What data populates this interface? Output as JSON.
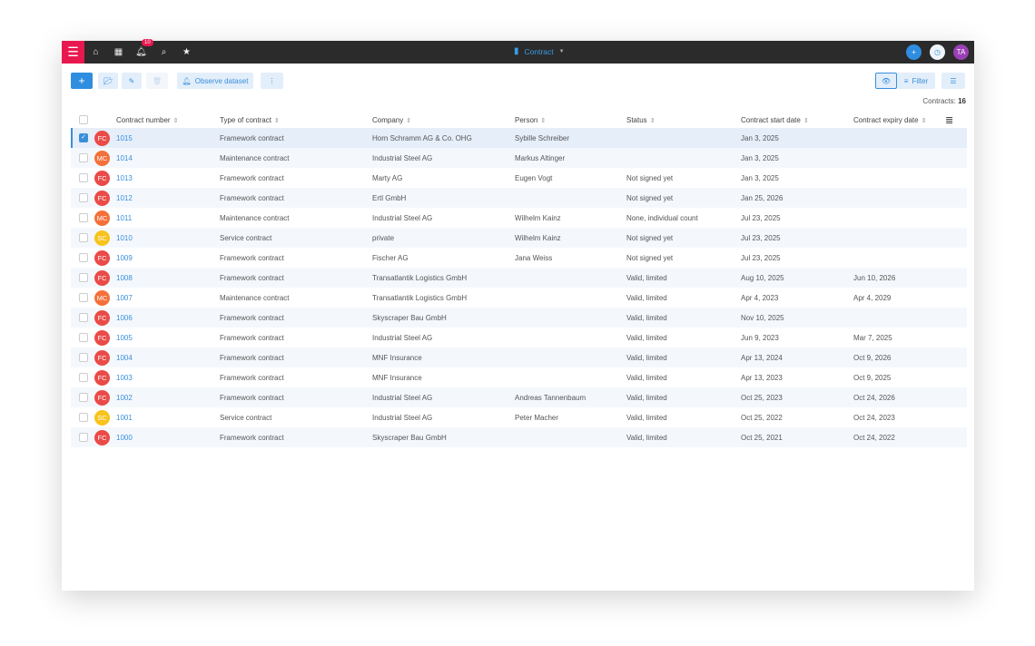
{
  "topbar": {
    "title": "Contract",
    "notifications": "10",
    "user_initials": "TA"
  },
  "toolbar": {
    "observe": "Observe dataset",
    "filter": "Filter"
  },
  "count": {
    "label": "Contracts:",
    "value": "16"
  },
  "columns": [
    "Contract number",
    "Type of contract",
    "Company",
    "Person",
    "Status",
    "Contract start date",
    "Contract expiry date"
  ],
  "colors": {
    "FC": "#ea4b48",
    "MC": "#f4703a",
    "SC": "#f7c31c",
    "accent": "#3a8fd9",
    "brand": "#e8184f"
  },
  "rows": [
    {
      "av": "FC",
      "num": "1015",
      "type": "Framework contract",
      "company": "Horn Schramm AG & Co. OHG",
      "person": "Sybille Schreiber",
      "status": "",
      "start": "Jan 3, 2025",
      "end": "",
      "selected": true
    },
    {
      "av": "MC",
      "num": "1014",
      "type": "Maintenance contract",
      "company": "Industrial Steel AG",
      "person": "Markus Altinger",
      "status": "",
      "start": "Jan 3, 2025",
      "end": ""
    },
    {
      "av": "FC",
      "num": "1013",
      "type": "Framework contract",
      "company": "Marty AG",
      "person": "Eugen Vogt",
      "status": "Not signed yet",
      "start": "Jan 3, 2025",
      "end": ""
    },
    {
      "av": "FC",
      "num": "1012",
      "type": "Framework contract",
      "company": "Ertl GmbH",
      "person": "",
      "status": "Not signed yet",
      "start": "Jan 25, 2026",
      "end": ""
    },
    {
      "av": "MC",
      "num": "1011",
      "type": "Maintenance contract",
      "company": "Industrial Steel AG",
      "person": "Wilhelm Kainz",
      "status": "None, individual count",
      "start": "Jul 23, 2025",
      "end": ""
    },
    {
      "av": "SC",
      "num": "1010",
      "type": "Service contract",
      "company": "private",
      "person": "Wilhelm Kainz",
      "status": "Not signed yet",
      "start": "Jul 23, 2025",
      "end": ""
    },
    {
      "av": "FC",
      "num": "1009",
      "type": "Framework contract",
      "company": "Fischer AG",
      "person": "Jana Weiss",
      "status": "Not signed yet",
      "start": "Jul 23, 2025",
      "end": ""
    },
    {
      "av": "FC",
      "num": "1008",
      "type": "Framework contract",
      "company": "Transatlantik Logistics GmbH",
      "person": "",
      "status": "Valid, limited",
      "start": "Aug 10, 2025",
      "end": "Jun 10, 2026"
    },
    {
      "av": "MC",
      "num": "1007",
      "type": "Maintenance contract",
      "company": "Transatlantik Logistics GmbH",
      "person": "",
      "status": "Valid, limited",
      "start": "Apr 4, 2023",
      "end": "Apr 4, 2029"
    },
    {
      "av": "FC",
      "num": "1006",
      "type": "Framework contract",
      "company": "Skyscraper Bau GmbH",
      "person": "",
      "status": "Valid, limited",
      "start": "Nov 10, 2025",
      "end": ""
    },
    {
      "av": "FC",
      "num": "1005",
      "type": "Framework contract",
      "company": "Industrial Steel AG",
      "person": "",
      "status": "Valid, limited",
      "start": "Jun 9, 2023",
      "end": "Mar 7, 2025"
    },
    {
      "av": "FC",
      "num": "1004",
      "type": "Framework contract",
      "company": "MNF Insurance",
      "person": "",
      "status": "Valid, limited",
      "start": "Apr 13, 2024",
      "end": "Oct 9, 2026"
    },
    {
      "av": "FC",
      "num": "1003",
      "type": "Framework contract",
      "company": "MNF Insurance",
      "person": "",
      "status": "Valid, limited",
      "start": "Apr 13, 2023",
      "end": "Oct 9, 2025"
    },
    {
      "av": "FC",
      "num": "1002",
      "type": "Framework contract",
      "company": "Industrial Steel AG",
      "person": "Andreas Tannenbaum",
      "status": "Valid, limited",
      "start": "Oct 25, 2023",
      "end": "Oct 24, 2026"
    },
    {
      "av": "SC",
      "num": "1001",
      "type": "Service contract",
      "company": "Industrial Steel AG",
      "person": "Peter Macher",
      "status": "Valid, limited",
      "start": "Oct 25, 2022",
      "end": "Oct 24, 2023"
    },
    {
      "av": "FC",
      "num": "1000",
      "type": "Framework contract",
      "company": "Skyscraper Bau GmbH",
      "person": "",
      "status": "Valid, limited",
      "start": "Oct 25, 2021",
      "end": "Oct 24, 2022"
    }
  ]
}
